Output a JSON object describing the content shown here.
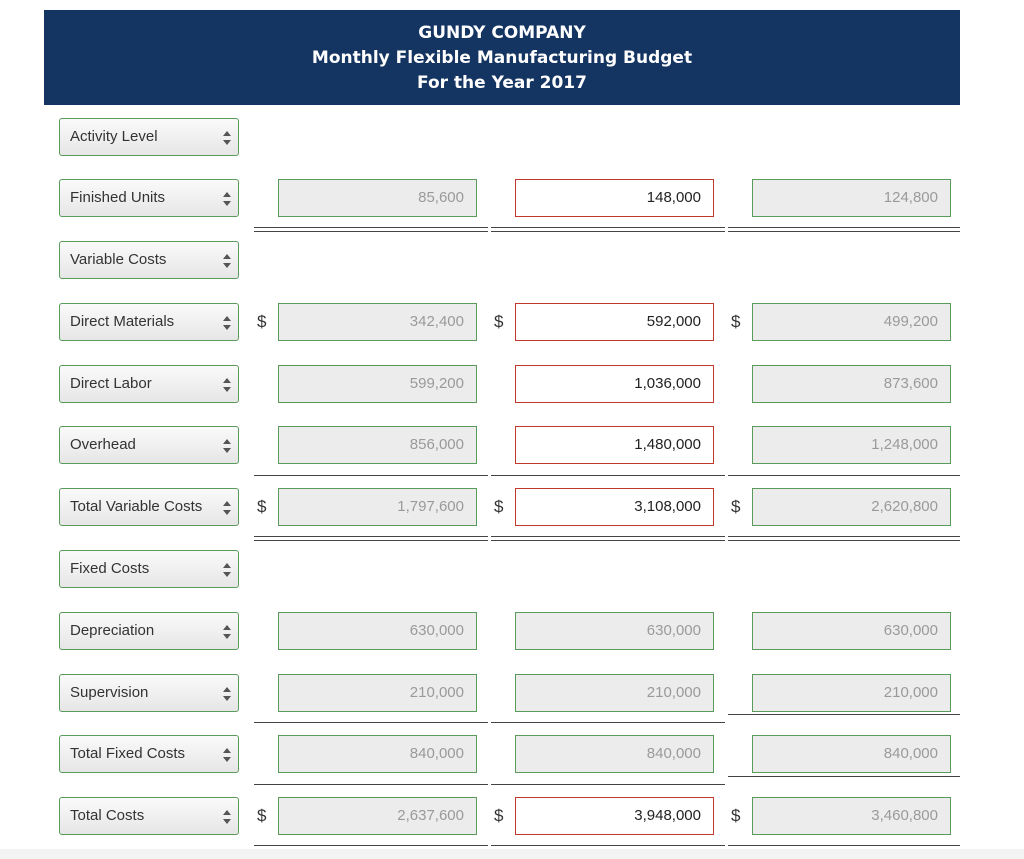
{
  "header": {
    "company": "GUNDY COMPANY",
    "title": "Monthly Flexible Manufacturing Budget",
    "period": "For the Year 2017"
  },
  "rows": [
    {
      "label": "Activity Level"
    },
    {
      "label": "Finished Units",
      "values": [
        "85,600",
        "148,000",
        "124,800"
      ]
    },
    {
      "label": "Variable Costs"
    },
    {
      "label": "Direct Materials",
      "dollar": "$",
      "values": [
        "342,400",
        "592,000",
        "499,200"
      ]
    },
    {
      "label": "Direct Labor",
      "values": [
        "599,200",
        "1,036,000",
        "873,600"
      ]
    },
    {
      "label": "Overhead",
      "values": [
        "856,000",
        "1,480,000",
        "1,248,000"
      ]
    },
    {
      "label": "Total Variable Costs",
      "dollar": "$",
      "values": [
        "1,797,600",
        "3,108,000",
        "2,620,800"
      ]
    },
    {
      "label": "Fixed Costs"
    },
    {
      "label": "Depreciation",
      "values": [
        "630,000",
        "630,000",
        "630,000"
      ]
    },
    {
      "label": "Supervision",
      "values": [
        "210,000",
        "210,000",
        "210,000"
      ]
    },
    {
      "label": "Total Fixed Costs",
      "values": [
        "840,000",
        "840,000",
        "840,000"
      ]
    },
    {
      "label": "Total Costs",
      "dollar": "$",
      "values": [
        "2,637,600",
        "3,948,000",
        "3,460,800"
      ]
    }
  ]
}
